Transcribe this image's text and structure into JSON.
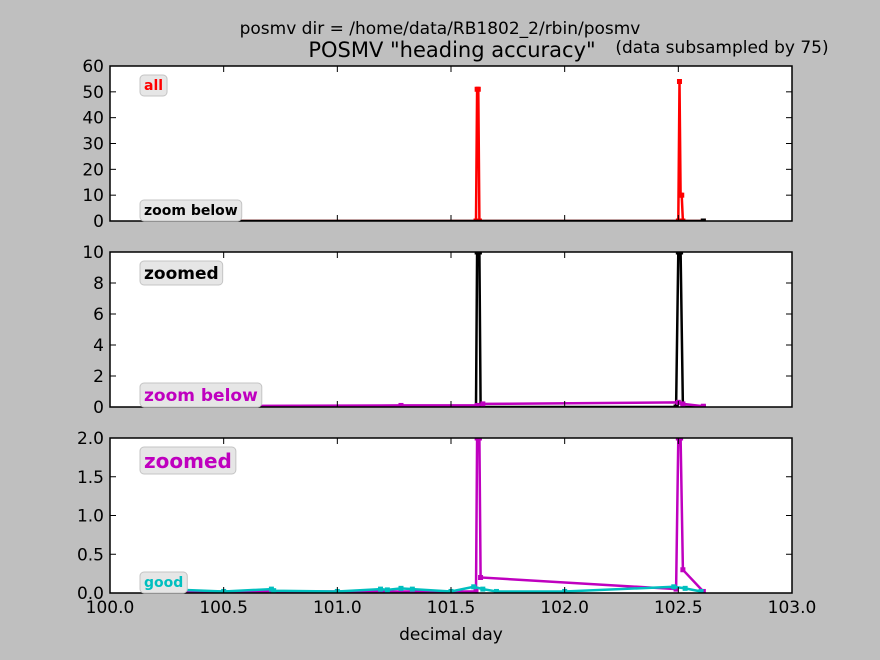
{
  "figure": {
    "suptitle": "posmv dir = /home/data/RB1802_2/rbin/posmv",
    "title": "POSMV \"heading accuracy\"",
    "subtitle": "(data subsampled by 75)",
    "xlabel": "decimal day",
    "background_color": "#bfbfbf",
    "axes_face_color": "#ffffff"
  },
  "chart_data": [
    {
      "type": "line",
      "panel": "all",
      "xlim": [
        100.0,
        103.0
      ],
      "ylim": [
        0,
        60
      ],
      "yticks": [
        "0",
        "10",
        "20",
        "30",
        "40",
        "50",
        "60"
      ],
      "xticks": [],
      "labels": [
        {
          "text": "all",
          "color": "#ff0000",
          "size": "small",
          "placement": "top-left"
        },
        {
          "text": "zoom below",
          "color": "#000000",
          "size": "small",
          "placement": "bottom-left"
        }
      ],
      "series": [
        {
          "color": "#ff0000",
          "role": "all data",
          "x": [
            100.23,
            101.61,
            101.615,
            101.62,
            101.625,
            102.5,
            102.505,
            102.51,
            102.515,
            102.52,
            102.61
          ],
          "y": [
            0,
            0,
            51,
            51,
            0,
            0,
            54,
            10,
            10,
            0,
            0
          ]
        },
        {
          "color": "#000000",
          "role": "zoomed data",
          "x": [
            100.23,
            102.61
          ],
          "y": [
            0,
            0
          ]
        }
      ]
    },
    {
      "type": "line",
      "panel": "zoomed",
      "xlim": [
        100.0,
        103.0
      ],
      "ylim": [
        0,
        10
      ],
      "yticks": [
        "0",
        "2",
        "4",
        "6",
        "8",
        "10"
      ],
      "xticks": [],
      "labels": [
        {
          "text": "zoomed",
          "color": "#000000",
          "size": "large",
          "placement": "top-left"
        },
        {
          "text": "zoom below",
          "color": "#bf00bf",
          "size": "large",
          "placement": "bottom-left"
        }
      ],
      "series": [
        {
          "color": "#000000",
          "role": "zoomed data",
          "x": [
            100.23,
            101.61,
            101.615,
            101.625,
            101.63,
            102.49,
            102.5,
            102.51,
            102.52,
            102.61
          ],
          "y": [
            0,
            0,
            10,
            10,
            0,
            0,
            10,
            10,
            0,
            0
          ]
        },
        {
          "color": "#bf00bf",
          "role": "low values",
          "x": [
            100.23,
            101.28,
            101.615,
            101.64,
            102.5,
            102.52,
            102.61
          ],
          "y": [
            0.05,
            0.1,
            0.1,
            0.2,
            0.3,
            0.2,
            0.05
          ]
        }
      ]
    },
    {
      "type": "line",
      "panel": "good",
      "xlim": [
        100.0,
        103.0
      ],
      "ylim": [
        0,
        2.0
      ],
      "yticks": [
        "0.0",
        "0.5",
        "1.0",
        "1.5",
        "2.0"
      ],
      "xticks": [
        "100.0",
        "100.5",
        "101.0",
        "101.5",
        "102.0",
        "102.5",
        "103.0"
      ],
      "labels": [
        {
          "text": "zoomed",
          "color": "#bf00bf",
          "size": "xlarge",
          "placement": "top-left"
        },
        {
          "text": "good",
          "color": "#00bfbf",
          "size": "small",
          "placement": "bottom-left"
        }
      ],
      "series": [
        {
          "color": "#bf00bf",
          "role": "zoomed data",
          "x": [
            100.23,
            101.61,
            101.615,
            101.625,
            101.63,
            102.49,
            102.5,
            102.51,
            102.52,
            102.61
          ],
          "y": [
            0.02,
            0.02,
            2.0,
            2.0,
            0.2,
            0.05,
            2.0,
            2.0,
            0.3,
            0.02
          ]
        },
        {
          "color": "#00bfbf",
          "role": "good data",
          "x": [
            100.23,
            100.26,
            100.3,
            100.32,
            100.5,
            100.71,
            100.72,
            101.0,
            101.19,
            101.22,
            101.28,
            101.33,
            101.5,
            101.6,
            101.64,
            101.7,
            102.0,
            102.48,
            102.53,
            102.6
          ],
          "y": [
            0.02,
            0.04,
            0.05,
            0.04,
            0.02,
            0.05,
            0.03,
            0.02,
            0.05,
            0.04,
            0.06,
            0.05,
            0.02,
            0.08,
            0.05,
            0.02,
            0.02,
            0.08,
            0.06,
            0.02
          ]
        }
      ]
    }
  ]
}
